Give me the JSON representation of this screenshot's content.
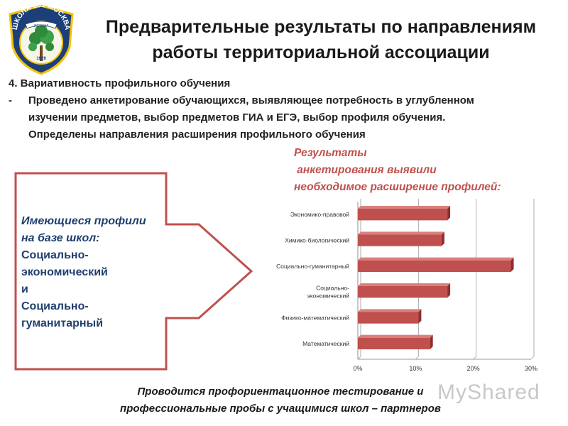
{
  "logo": {
    "top_text": "ШКОЛА 661 МОСКВА",
    "ribbon_text": "ИСТИНА",
    "year": "1929",
    "colors": {
      "navy": "#1c3f7a",
      "gold": "#f2c400",
      "green": "#2f8a3a"
    }
  },
  "title": {
    "line1": "Предварительные результаты по направлениям",
    "line2": "работы территориальной ассоциации"
  },
  "section": {
    "heading": "4. Вариативность профильного обучения",
    "bullet_marker": "-",
    "bullet_lines": [
      "Проведено анкетирование обучающихся, выявляющее потребность в углубленном",
      "изучении предметов, выбор  предметов ГИА и ЕГЭ, выбор профиля обучения.",
      "Определены направления расширения профильного обучения"
    ]
  },
  "results_note": {
    "lines": [
      "Результаты",
      " анкетирования выявили",
      "необходимое расширение профилей:"
    ]
  },
  "profiles_box": {
    "lines": [
      "Имеющиеся профили",
      "на базе школ:",
      "Социально-",
      "экономический",
      "и",
      "Социально-",
      "гуманитарный"
    ],
    "border_color": "#c0504d"
  },
  "chart_data": {
    "type": "bar",
    "orientation": "horizontal",
    "categories": [
      "Экономико-правовой",
      "Химико-биологический",
      "Социально-гуманитарный",
      "Социально-\nэкономический",
      "Физико-математический",
      "Математический"
    ],
    "values": [
      15.5,
      14.5,
      26.5,
      15.5,
      10.5,
      12.5
    ],
    "xlim": [
      0,
      30
    ],
    "x_ticks": [
      "0%",
      "10%",
      "20%",
      "30%"
    ],
    "x_tick_values": [
      0,
      10,
      20,
      30
    ],
    "bar_color": "#c0504d",
    "grid": true
  },
  "footer": {
    "line1": "Проводится профориентационное тестирование и",
    "line2": "профессиональные пробы с учащимися  школ – партнеров"
  },
  "watermark": {
    "text": "MyShared"
  }
}
